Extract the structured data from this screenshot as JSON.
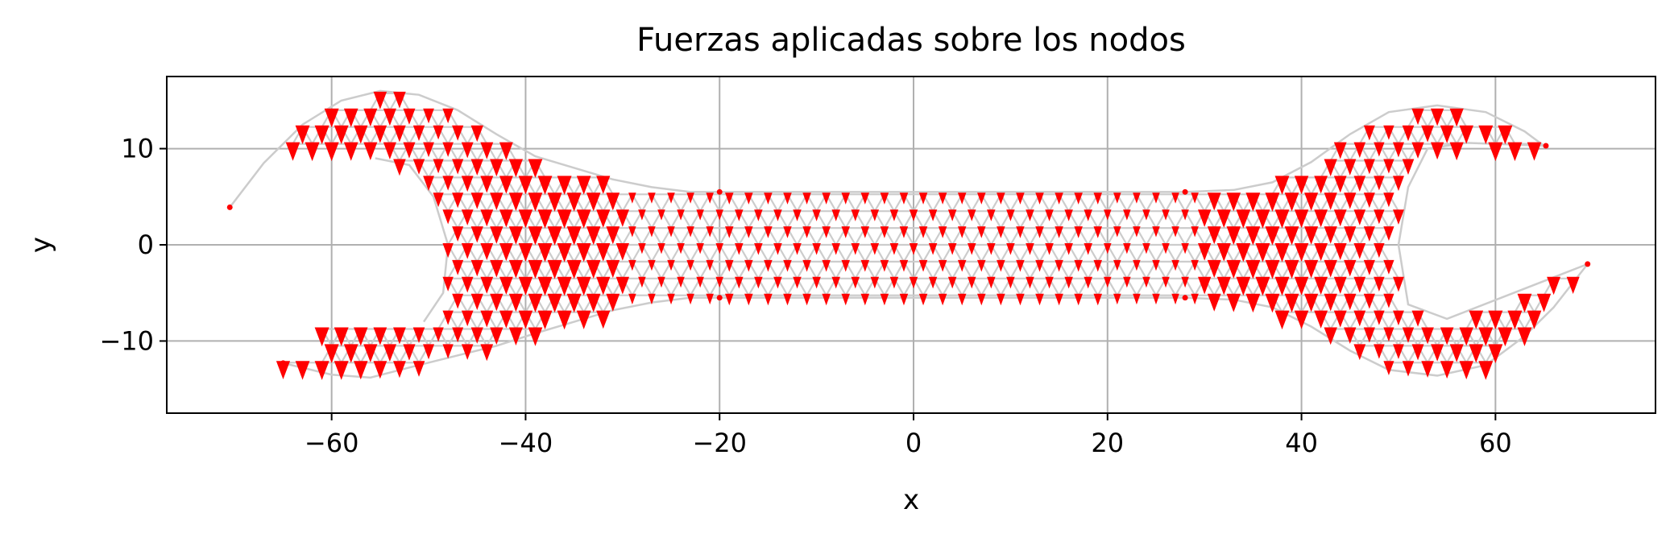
{
  "chart_data": {
    "type": "quiver",
    "title": "Fuerzas aplicadas sobre los nodos",
    "xlabel": "x",
    "ylabel": "y",
    "xlim": [
      -77,
      76.5
    ],
    "ylim": [
      -17.5,
      17.5
    ],
    "xticks": [
      -60,
      -40,
      -20,
      0,
      20,
      40,
      60
    ],
    "xtick_labels": [
      "−60",
      "−40",
      "−20",
      "0",
      "20",
      "40",
      "60"
    ],
    "yticks": [
      10,
      0,
      -10
    ],
    "ytick_labels": [
      "10",
      "0",
      "−10"
    ],
    "grid": true,
    "mesh_color": "#cccccc",
    "arrow_color": "#ff0000",
    "force_direction": "downward (negative y)",
    "body_outline": {
      "upper": [
        [
          -70.5,
          3.9
        ],
        [
          -67,
          8.5
        ],
        [
          -63,
          12.5
        ],
        [
          -59,
          15
        ],
        [
          -55,
          16
        ],
        [
          -51,
          15.6
        ],
        [
          -47,
          14
        ],
        [
          -43,
          11.5
        ],
        [
          -39,
          9.2
        ],
        [
          -35,
          8
        ],
        [
          -31,
          6.8
        ],
        [
          -27,
          6
        ],
        [
          -23,
          5.5
        ],
        [
          -20,
          5.5
        ],
        [
          28,
          5.5
        ],
        [
          33,
          5.7
        ],
        [
          37,
          6.5
        ],
        [
          41,
          8.6
        ],
        [
          45,
          11.5
        ],
        [
          49,
          13.8
        ],
        [
          54,
          14.5
        ],
        [
          59,
          13.8
        ],
        [
          63,
          11.8
        ],
        [
          65,
          10.3
        ]
      ],
      "lower": [
        [
          -65,
          -12.3
        ],
        [
          -60,
          -13.5
        ],
        [
          -56,
          -13.8
        ],
        [
          -51,
          -12.5
        ],
        [
          -47,
          -11.5
        ],
        [
          -43,
          -10.5
        ],
        [
          -39,
          -9.2
        ],
        [
          -35,
          -8
        ],
        [
          -31,
          -6.8
        ],
        [
          -27,
          -6
        ],
        [
          -23,
          -5.5
        ],
        [
          -20,
          -5.5
        ],
        [
          28,
          -5.5
        ],
        [
          33,
          -5.7
        ],
        [
          37,
          -6.5
        ],
        [
          41,
          -8.5
        ],
        [
          45,
          -11
        ],
        [
          49,
          -13
        ],
        [
          54,
          -13.6
        ],
        [
          59,
          -12.5
        ],
        [
          63,
          -9.5
        ],
        [
          66,
          -6.5
        ],
        [
          69.5,
          -2
        ]
      ],
      "inner_left": [
        [
          -55.5,
          9
        ],
        [
          -52,
          8.3
        ],
        [
          -49.5,
          5
        ],
        [
          -48,
          0
        ],
        [
          -48.5,
          -5
        ],
        [
          -50.5,
          -8
        ]
      ],
      "inner_right": [
        [
          65.2,
          10.3
        ],
        [
          57,
          10.6
        ],
        [
          53,
          10
        ],
        [
          51,
          6
        ],
        [
          50,
          0
        ],
        [
          51,
          -6.2
        ],
        [
          55,
          -7.7
        ],
        [
          69.5,
          -2
        ]
      ]
    }
  }
}
